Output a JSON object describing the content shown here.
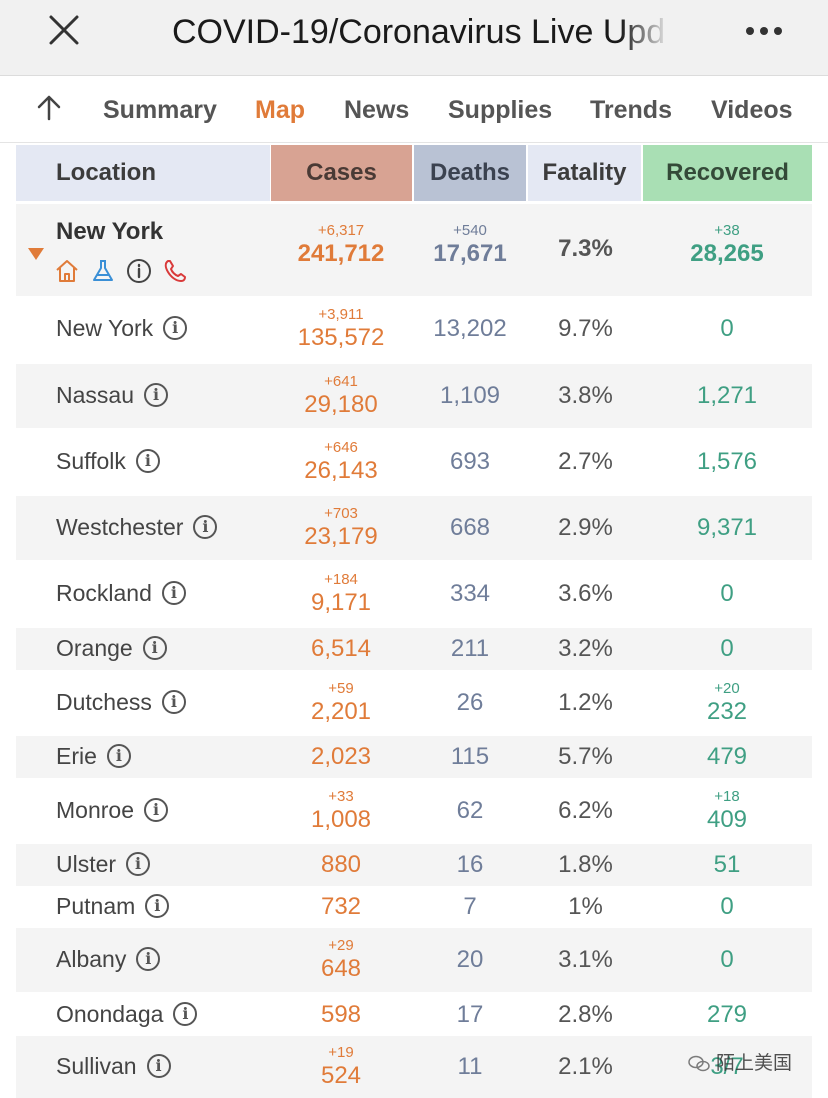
{
  "window": {
    "title": "COVID-19/Coronavirus Live Upd",
    "close_icon": "close-icon",
    "more_icon": "more-horizontal-icon"
  },
  "nav": {
    "up_icon": "arrow-up-icon",
    "tabs": [
      {
        "label": "Summary",
        "active": false
      },
      {
        "label": "Map",
        "active": true
      },
      {
        "label": "News",
        "active": false
      },
      {
        "label": "Supplies",
        "active": false
      },
      {
        "label": "Trends",
        "active": false
      },
      {
        "label": "Videos",
        "active": false
      }
    ],
    "active_color": "#e07b39"
  },
  "table": {
    "headers": {
      "location": "Location",
      "cases": "Cases",
      "deaths": "Deaths",
      "fatality": "Fatality",
      "recovered": "Recovered"
    },
    "header_colors": {
      "cases": "#d8a393",
      "deaths": "#b9c2d4",
      "recovered": "#a9dfb4"
    },
    "state": {
      "name": "New York",
      "expanded": true,
      "icons": [
        "home-icon",
        "flask-icon",
        "info-icon",
        "phone-icon"
      ],
      "cases_delta": "+6,317",
      "cases": "241,712",
      "deaths_delta": "+540",
      "deaths": "17,671",
      "fatality": "7.3%",
      "recovered_delta": "+38",
      "recovered": "28,265"
    },
    "info_glyph": "i",
    "counties": [
      {
        "name": "New York",
        "cases_delta": "+3,911",
        "cases": "135,572",
        "deaths": "13,202",
        "fatality": "9.7%",
        "recovered_delta": "",
        "recovered": "0"
      },
      {
        "name": "Nassau",
        "cases_delta": "+641",
        "cases": "29,180",
        "deaths": "1,109",
        "fatality": "3.8%",
        "recovered_delta": "",
        "recovered": "1,271"
      },
      {
        "name": "Suffolk",
        "cases_delta": "+646",
        "cases": "26,143",
        "deaths": "693",
        "fatality": "2.7%",
        "recovered_delta": "",
        "recovered": "1,576"
      },
      {
        "name": "Westchester",
        "cases_delta": "+703",
        "cases": "23,179",
        "deaths": "668",
        "fatality": "2.9%",
        "recovered_delta": "",
        "recovered": "9,371"
      },
      {
        "name": "Rockland",
        "cases_delta": "+184",
        "cases": "9,171",
        "deaths": "334",
        "fatality": "3.6%",
        "recovered_delta": "",
        "recovered": "0"
      },
      {
        "name": "Orange",
        "cases_delta": "",
        "cases": "6,514",
        "deaths": "211",
        "fatality": "3.2%",
        "recovered_delta": "",
        "recovered": "0"
      },
      {
        "name": "Dutchess",
        "cases_delta": "+59",
        "cases": "2,201",
        "deaths": "26",
        "fatality": "1.2%",
        "recovered_delta": "+20",
        "recovered": "232"
      },
      {
        "name": "Erie",
        "cases_delta": "",
        "cases": "2,023",
        "deaths": "115",
        "fatality": "5.7%",
        "recovered_delta": "",
        "recovered": "479"
      },
      {
        "name": "Monroe",
        "cases_delta": "+33",
        "cases": "1,008",
        "deaths": "62",
        "fatality": "6.2%",
        "recovered_delta": "+18",
        "recovered": "409"
      },
      {
        "name": "Ulster",
        "cases_delta": "",
        "cases": "880",
        "deaths": "16",
        "fatality": "1.8%",
        "recovered_delta": "",
        "recovered": "51"
      },
      {
        "name": "Putnam",
        "cases_delta": "",
        "cases": "732",
        "deaths": "7",
        "fatality": "1%",
        "recovered_delta": "",
        "recovered": "0"
      },
      {
        "name": "Albany",
        "cases_delta": "+29",
        "cases": "648",
        "deaths": "20",
        "fatality": "3.1%",
        "recovered_delta": "",
        "recovered": "0"
      },
      {
        "name": "Onondaga",
        "cases_delta": "",
        "cases": "598",
        "deaths": "17",
        "fatality": "2.8%",
        "recovered_delta": "",
        "recovered": "279"
      },
      {
        "name": "Sullivan",
        "cases_delta": "+19",
        "cases": "524",
        "deaths": "11",
        "fatality": "2.1%",
        "recovered_delta": "",
        "recovered": "3/7"
      }
    ]
  },
  "watermark": {
    "icon": "wechat-icon",
    "text": "陌上美国"
  }
}
